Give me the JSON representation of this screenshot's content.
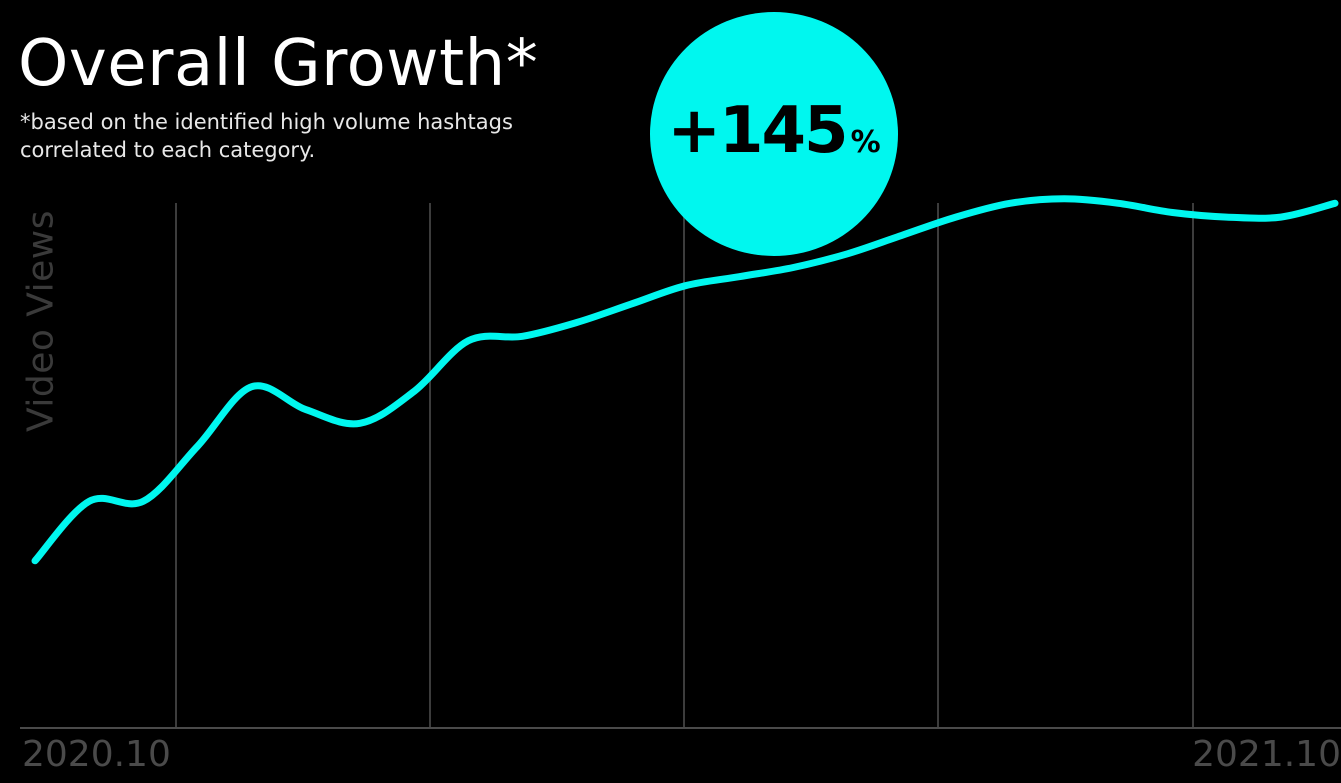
{
  "title": "Overall Growth*",
  "subtitle_lines": [
    "*based on the identified high volume hashtags",
    "correlated to each category."
  ],
  "badge": {
    "value": "+145",
    "unit": "%"
  },
  "colors": {
    "background": "#000000",
    "line": "#00f7ef",
    "grid": "#3c3c3c",
    "axis": "#4a4a4a"
  },
  "chart_data": {
    "type": "line",
    "title": "Overall Growth*",
    "ylabel": "Video Views",
    "xlabel": "",
    "x_tick_labels": [
      "2020.10",
      "2021.10"
    ],
    "x_start": "2020.10",
    "x_end": "2021.10",
    "grid": "vertical",
    "y_ticks_shown": false,
    "change_label": "+145%",
    "note": "values are relative video views read from line height; y axis has no printed scale",
    "x": [
      0.0,
      0.5,
      1.0,
      1.5,
      2.0,
      2.5,
      3.0,
      3.5,
      4.0,
      4.5,
      5.0,
      5.5,
      6.0,
      6.5,
      7.0,
      7.5,
      8.0,
      8.5,
      9.0,
      9.5,
      10.0,
      10.5,
      11.0,
      11.5,
      12.0
    ],
    "series": [
      {
        "values": [
          26,
          39,
          39,
          51,
          64,
          59,
          56,
          63,
          74,
          75,
          78,
          82,
          86,
          88,
          90,
          93,
          97,
          101,
          104,
          105,
          104,
          102,
          101,
          101,
          104
        ]
      }
    ]
  }
}
